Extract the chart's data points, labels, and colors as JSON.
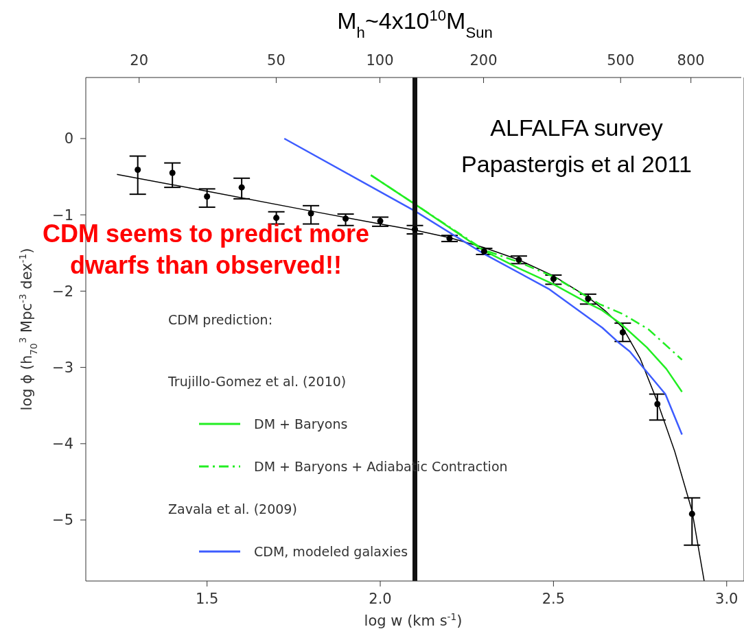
{
  "chart_data": {
    "type": "scatter",
    "xlabel": "log w (km s$^{-1}$)",
    "ylabel": "log ϕ (h$_{70}$$^{3}$ Mpc$^{-3}$ dex$^{-1}$)",
    "legend_title": "CDM prediction:",
    "legend": "bottom left",
    "xlim": [
      1.15,
      3.05
    ],
    "xticks": [
      1.5,
      {
        "value": 2,
        "label": "2.0"
      },
      2.5,
      {
        "value": 3,
        "label": "3.0"
      }
    ],
    "x2lim": [
      14,
      1120
    ],
    "x2ticks": [
      20,
      50,
      100,
      200,
      500,
      800
    ],
    "log": "x2",
    "ylim": [
      -5.8,
      0.8
    ],
    "yticks": [
      0,
      -1,
      -2,
      -3,
      -4,
      -5
    ],
    "ref_lines": [
      {
        "axis": "x",
        "value": 2.1,
        "label": "M$_{h}$~4x10$^{10}$M$_{Sun}$",
        "color": "#111111"
      }
    ],
    "annotations": [
      "ALFALFA survey Papastergis et al 2011",
      "CDM seems to predict more dwarfs than observed!!",
      "Trujillo-Gomez et al. (2010)",
      "Zavala et al. (2009)"
    ],
    "series": [
      {
        "color": "#000000",
        "marker": "circle",
        "x": [
          1.3,
          1.4,
          1.5,
          1.6,
          1.7,
          1.8,
          1.9,
          2.0,
          2.1,
          2.2,
          2.3,
          2.4,
          2.5,
          2.6,
          2.7,
          2.8,
          2.9
        ],
        "values": [
          -0.41,
          -0.45,
          -0.76,
          -0.64,
          -1.04,
          -0.98,
          -1.05,
          -1.08,
          -1.19,
          -1.31,
          -1.48,
          -1.59,
          -1.84,
          -2.1,
          -2.54,
          -3.48,
          -4.92
        ],
        "errors": [
          [
            -0.73,
            -0.23
          ],
          [
            -0.64,
            -0.32
          ],
          [
            -0.9,
            -0.66
          ],
          [
            -0.79,
            -0.52
          ],
          [
            -1.12,
            -0.96
          ],
          [
            -1.12,
            -0.88
          ],
          [
            -1.14,
            -0.99
          ],
          [
            -1.15,
            -1.03
          ],
          [
            -1.25,
            -1.14
          ],
          [
            -1.35,
            -1.27
          ],
          [
            -1.52,
            -1.44
          ],
          [
            -1.64,
            -1.54
          ],
          [
            -1.91,
            -1.79
          ],
          [
            -2.17,
            -2.04
          ],
          [
            -2.66,
            -2.42
          ],
          [
            -3.69,
            -3.35
          ],
          [
            -5.33,
            -4.71
          ]
        ]
      },
      {
        "type": "line",
        "color": "#000000",
        "x": [
          1.24,
          1.5,
          1.8,
          2.0,
          2.1,
          2.2,
          2.3,
          2.4,
          2.5,
          2.6,
          2.65,
          2.7,
          2.75,
          2.8,
          2.85,
          2.9,
          2.935
        ],
        "values": [
          -0.47,
          -0.69,
          -0.95,
          -1.12,
          -1.2,
          -1.3,
          -1.43,
          -1.59,
          -1.8,
          -2.08,
          -2.26,
          -2.48,
          -2.88,
          -3.45,
          -4.1,
          -4.88,
          -5.8
        ]
      },
      {
        "type": "line",
        "name": "DM + Baryons",
        "color": "#22ee22",
        "x": [
          1.973,
          2.1,
          2.295,
          2.4,
          2.5,
          2.605,
          2.64,
          2.695,
          2.77,
          2.826,
          2.871
        ],
        "values": [
          -0.48,
          -0.86,
          -1.46,
          -1.7,
          -1.91,
          -2.17,
          -2.25,
          -2.43,
          -2.74,
          -3.02,
          -3.32
        ]
      },
      {
        "type": "line",
        "name": "DM + Baryons + Adiabatic Contraction",
        "color": "#22ee22",
        "line_style": "dashed",
        "x": [
          1.973,
          2.1,
          2.3,
          2.4,
          2.5,
          2.633,
          2.7,
          2.774,
          2.871
        ],
        "values": [
          -0.48,
          -0.86,
          -1.46,
          -1.62,
          -1.81,
          -2.17,
          -2.3,
          -2.5,
          -2.9
        ]
      },
      {
        "type": "line",
        "name": "CDM, modeled galaxies",
        "color": "#3d5cff",
        "x": [
          1.723,
          2.1,
          2.295,
          2.486,
          2.641,
          2.687,
          2.72,
          2.823,
          2.871
        ],
        "values": [
          0.0,
          -0.95,
          -1.5,
          -1.97,
          -2.48,
          -2.67,
          -2.79,
          -3.35,
          -3.88
        ]
      }
    ]
  }
}
